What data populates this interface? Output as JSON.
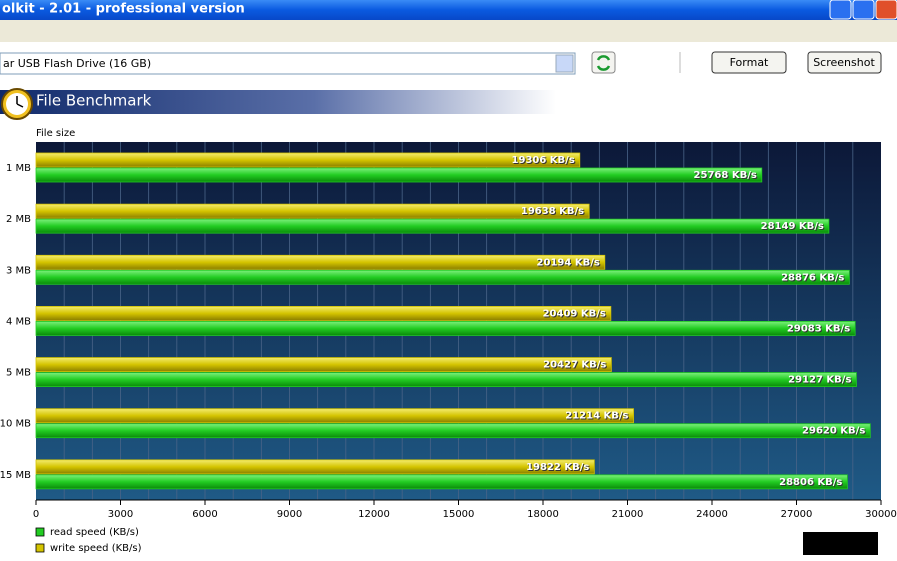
{
  "window": {
    "title": "olkit - 2.01 - professional version",
    "device": "ar   USB Flash Drive (16 GB)",
    "buttons": [
      "Format",
      "Screenshot"
    ]
  },
  "chart_data": {
    "type": "bar",
    "orientation": "horizontal",
    "title": "File Benchmark",
    "y_label": "File size",
    "categories": [
      "1 MB",
      "2 MB",
      "3 MB",
      "4 MB",
      "5 MB",
      "10 MB",
      "15 MB"
    ],
    "series": [
      {
        "name": "read speed (KB/s)",
        "color": "#22cc22",
        "values": [
          25768,
          28149,
          28876,
          29083,
          29127,
          29620,
          28806
        ],
        "value_labels": [
          "25768 KB/s",
          "28149 KB/s",
          "28876 KB/s",
          "29083 KB/s",
          "29127 KB/s",
          "29620 KB/s",
          "28806 KB/s"
        ]
      },
      {
        "name": "write speed (KB/s)",
        "color": "#d4c400",
        "values": [
          19306,
          19638,
          20194,
          20409,
          20427,
          21214,
          19822
        ],
        "value_labels": [
          "19306 KB/s",
          "19638 KB/s",
          "20194 KB/s",
          "20409 KB/s",
          "20427 KB/s",
          "21214 KB/s",
          "19822 KB/s"
        ]
      }
    ],
    "xlim": [
      0,
      30000
    ],
    "xticks": [
      0,
      3000,
      6000,
      9000,
      12000,
      15000,
      18000,
      21000,
      24000,
      27000,
      30000
    ],
    "minor_step": 1000,
    "grid": true
  }
}
